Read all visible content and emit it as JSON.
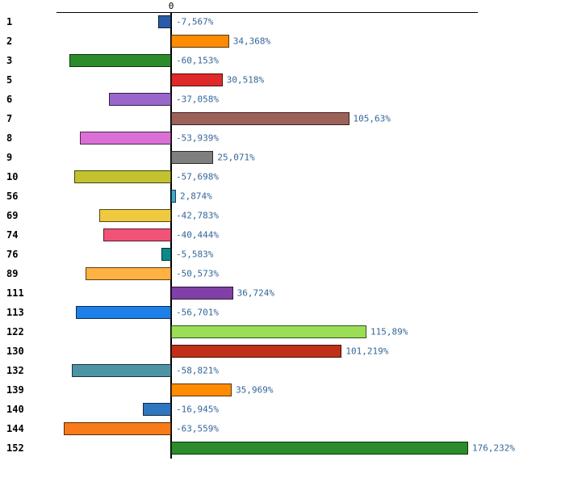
{
  "chart_data": {
    "type": "bar",
    "orientation": "horizontal",
    "title": "",
    "xlabel": "",
    "ylabel": "",
    "zero_tick_label": "0",
    "grid": false,
    "legend": false,
    "xlim": [
      -68,
      182
    ],
    "axis_color": "#000000",
    "value_label_color": "#336699",
    "categories": [
      "1",
      "2",
      "3",
      "5",
      "6",
      "7",
      "8",
      "9",
      "10",
      "56",
      "69",
      "74",
      "76",
      "89",
      "111",
      "113",
      "122",
      "130",
      "132",
      "139",
      "140",
      "144",
      "152"
    ],
    "values": [
      -7.567,
      34.368,
      -60.153,
      30.518,
      -37.058,
      105.63,
      -53.939,
      25.071,
      -57.698,
      2.874,
      -42.783,
      -40.444,
      -5.583,
      -50.573,
      36.724,
      -56.701,
      115.89,
      101.219,
      -58.821,
      35.969,
      -16.945,
      -63.559,
      176.232
    ],
    "display_labels": [
      "-7,567%",
      "34,368%",
      "-60,153%",
      "30,518%",
      "-37,058%",
      "105,63%",
      "-53,939%",
      "25,071%",
      "-57,698%",
      "2,874%",
      "-42,783%",
      "-40,444%",
      "-5,583%",
      "-50,573%",
      "36,724%",
      "-56,701%",
      "115,89%",
      "101,219%",
      "-58,821%",
      "35,969%",
      "-16,945%",
      "-63,559%",
      "176,232%"
    ],
    "bar_colors": [
      "#2B5BA8",
      "#FF8C00",
      "#2C8C2C",
      "#E02A2A",
      "#9966CC",
      "#9C625A",
      "#DA70D6",
      "#7F7F7F",
      "#C2C22E",
      "#3FA9D0",
      "#EFC93F",
      "#F25277",
      "#0C8A8A",
      "#FFB143",
      "#8040A8",
      "#1F7FE8",
      "#9ADE57",
      "#C03018",
      "#4D94A6",
      "#FF8C00",
      "#2F76C0",
      "#F87A18",
      "#2C8C2C"
    ]
  }
}
